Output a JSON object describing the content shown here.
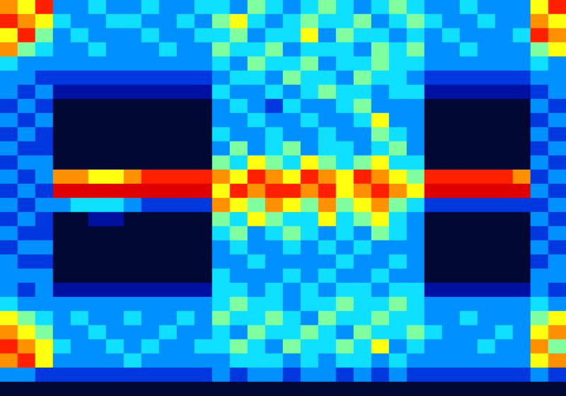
{
  "chart_data": {
    "type": "heatmap",
    "tick_labels": false,
    "color_range": [
      0,
      9
    ],
    "cells": [
      [
        7,
        6,
        8,
        3,
        3,
        4,
        3,
        3,
        4,
        3,
        3,
        4,
        4,
        3,
        5,
        4,
        3,
        4,
        5,
        4,
        3,
        4,
        5,
        4,
        3,
        3,
        4,
        3,
        3,
        3,
        6,
        8
      ],
      [
        8,
        7,
        6,
        4,
        3,
        3,
        4,
        4,
        3,
        3,
        4,
        3,
        5,
        6,
        4,
        3,
        4,
        5,
        4,
        4,
        5,
        3,
        4,
        5,
        4,
        3,
        3,
        4,
        3,
        3,
        7,
        6
      ],
      [
        6,
        8,
        5,
        3,
        4,
        3,
        3,
        3,
        4,
        3,
        3,
        4,
        4,
        5,
        3,
        4,
        4,
        6,
        3,
        5,
        4,
        4,
        3,
        4,
        3,
        4,
        3,
        3,
        3,
        4,
        8,
        7
      ],
      [
        7,
        5,
        4,
        3,
        3,
        4,
        3,
        3,
        3,
        4,
        3,
        3,
        5,
        4,
        4,
        5,
        3,
        4,
        4,
        4,
        3,
        5,
        4,
        5,
        3,
        3,
        4,
        3,
        3,
        3,
        5,
        6
      ],
      [
        4,
        3,
        3,
        3,
        3,
        3,
        3,
        3,
        3,
        3,
        3,
        3,
        4,
        3,
        5,
        4,
        4,
        5,
        3,
        4,
        4,
        5,
        4,
        4,
        3,
        3,
        3,
        3,
        3,
        3,
        4,
        3
      ],
      [
        3,
        3,
        2,
        2,
        2,
        2,
        2,
        2,
        2,
        2,
        2,
        2,
        3,
        4,
        4,
        3,
        5,
        4,
        4,
        3,
        5,
        4,
        4,
        3,
        2,
        2,
        2,
        2,
        2,
        2,
        3,
        3
      ],
      [
        3,
        2,
        3,
        1,
        1,
        1,
        1,
        1,
        1,
        1,
        1,
        1,
        4,
        3,
        3,
        4,
        3,
        4,
        5,
        4,
        4,
        3,
        4,
        4,
        1,
        1,
        1,
        1,
        1,
        1,
        2,
        3
      ],
      [
        2,
        3,
        2,
        0,
        0,
        0,
        0,
        0,
        0,
        0,
        0,
        0,
        3,
        4,
        3,
        2,
        4,
        3,
        3,
        4,
        5,
        3,
        3,
        3,
        0,
        0,
        0,
        0,
        0,
        0,
        3,
        2
      ],
      [
        3,
        2,
        3,
        0,
        0,
        0,
        0,
        0,
        0,
        0,
        0,
        0,
        3,
        3,
        4,
        3,
        3,
        4,
        3,
        3,
        4,
        6,
        3,
        3,
        0,
        0,
        0,
        0,
        0,
        0,
        2,
        3
      ],
      [
        2,
        3,
        2,
        0,
        0,
        0,
        0,
        0,
        0,
        0,
        0,
        0,
        4,
        3,
        3,
        4,
        3,
        3,
        4,
        3,
        3,
        5,
        4,
        3,
        0,
        0,
        0,
        0,
        0,
        0,
        3,
        2
      ],
      [
        3,
        2,
        2,
        0,
        0,
        0,
        0,
        0,
        0,
        0,
        0,
        0,
        3,
        5,
        3,
        4,
        5,
        3,
        4,
        4,
        3,
        4,
        5,
        3,
        0,
        0,
        0,
        0,
        0,
        0,
        2,
        3
      ],
      [
        2,
        3,
        3,
        0,
        0,
        0,
        0,
        0,
        0,
        0,
        0,
        0,
        5,
        4,
        6,
        5,
        4,
        6,
        5,
        4,
        5,
        6,
        4,
        4,
        0,
        0,
        0,
        0,
        0,
        0,
        3,
        2
      ],
      [
        3,
        2,
        3,
        7,
        7,
        6,
        6,
        7,
        8,
        8,
        8,
        8,
        7,
        6,
        8,
        7,
        6,
        8,
        7,
        6,
        8,
        7,
        6,
        5,
        8,
        8,
        8,
        8,
        8,
        7,
        2,
        3
      ],
      [
        2,
        3,
        2,
        9,
        9,
        9,
        9,
        9,
        9,
        9,
        9,
        9,
        6,
        8,
        7,
        8,
        8,
        7,
        8,
        6,
        7,
        8,
        7,
        6,
        9,
        9,
        9,
        9,
        9,
        9,
        3,
        2
      ],
      [
        3,
        2,
        3,
        3,
        4,
        4,
        4,
        3,
        2,
        2,
        2,
        2,
        7,
        6,
        5,
        7,
        6,
        5,
        7,
        5,
        6,
        7,
        5,
        4,
        2,
        2,
        2,
        2,
        2,
        2,
        2,
        3
      ],
      [
        2,
        3,
        2,
        0,
        0,
        1,
        1,
        0,
        0,
        0,
        0,
        0,
        5,
        4,
        6,
        5,
        4,
        4,
        6,
        4,
        5,
        6,
        4,
        3,
        0,
        0,
        0,
        0,
        0,
        0,
        3,
        2
      ],
      [
        3,
        2,
        2,
        0,
        0,
        0,
        0,
        0,
        0,
        0,
        0,
        0,
        4,
        5,
        3,
        4,
        5,
        4,
        3,
        4,
        3,
        5,
        4,
        3,
        0,
        0,
        0,
        0,
        0,
        0,
        2,
        3
      ],
      [
        2,
        3,
        3,
        0,
        0,
        0,
        0,
        0,
        0,
        0,
        0,
        0,
        3,
        4,
        3,
        3,
        4,
        3,
        4,
        3,
        4,
        3,
        3,
        3,
        0,
        0,
        0,
        0,
        0,
        0,
        3,
        2
      ],
      [
        3,
        2,
        2,
        0,
        0,
        0,
        0,
        0,
        0,
        0,
        0,
        0,
        3,
        3,
        4,
        3,
        3,
        3,
        3,
        4,
        3,
        3,
        4,
        3,
        0,
        0,
        0,
        0,
        0,
        0,
        2,
        3
      ],
      [
        3,
        3,
        3,
        0,
        0,
        0,
        0,
        0,
        0,
        0,
        0,
        0,
        4,
        3,
        3,
        3,
        4,
        3,
        4,
        3,
        3,
        4,
        3,
        3,
        0,
        0,
        0,
        0,
        0,
        0,
        3,
        3
      ],
      [
        3,
        2,
        3,
        1,
        1,
        1,
        1,
        1,
        1,
        1,
        1,
        1,
        4,
        4,
        3,
        4,
        3,
        4,
        3,
        4,
        4,
        3,
        4,
        4,
        1,
        1,
        1,
        1,
        1,
        1,
        3,
        2
      ],
      [
        4,
        3,
        3,
        3,
        3,
        3,
        3,
        3,
        3,
        3,
        3,
        3,
        4,
        5,
        4,
        4,
        3,
        4,
        4,
        5,
        4,
        4,
        5,
        4,
        3,
        3,
        3,
        3,
        3,
        3,
        4,
        3
      ],
      [
        6,
        5,
        4,
        3,
        4,
        3,
        3,
        4,
        3,
        3,
        4,
        3,
        5,
        4,
        4,
        5,
        4,
        3,
        5,
        4,
        4,
        5,
        4,
        4,
        3,
        3,
        4,
        3,
        3,
        3,
        5,
        6
      ],
      [
        7,
        6,
        5,
        3,
        3,
        4,
        3,
        3,
        3,
        4,
        3,
        3,
        4,
        3,
        5,
        4,
        4,
        5,
        4,
        3,
        5,
        4,
        4,
        5,
        4,
        3,
        3,
        3,
        4,
        3,
        6,
        7
      ],
      [
        8,
        7,
        6,
        4,
        3,
        3,
        4,
        3,
        4,
        3,
        3,
        4,
        4,
        5,
        4,
        3,
        5,
        4,
        4,
        5,
        4,
        6,
        3,
        4,
        3,
        3,
        3,
        4,
        3,
        3,
        7,
        5
      ],
      [
        7,
        8,
        6,
        3,
        3,
        3,
        3,
        4,
        3,
        3,
        3,
        3,
        3,
        4,
        4,
        4,
        3,
        4,
        3,
        4,
        4,
        3,
        4,
        3,
        3,
        3,
        3,
        3,
        3,
        3,
        6,
        7
      ],
      [
        3,
        3,
        2,
        2,
        2,
        2,
        2,
        2,
        2,
        2,
        2,
        2,
        3,
        2,
        3,
        3,
        2,
        3,
        3,
        2,
        3,
        2,
        3,
        2,
        2,
        2,
        2,
        2,
        2,
        2,
        3,
        2
      ],
      [
        0,
        0,
        0,
        0,
        0,
        0,
        0,
        0,
        0,
        0,
        0,
        0,
        0,
        0,
        0,
        0,
        0,
        0,
        0,
        0,
        0,
        0,
        0,
        0,
        0,
        0,
        0,
        0,
        0,
        0,
        0,
        0
      ]
    ]
  }
}
